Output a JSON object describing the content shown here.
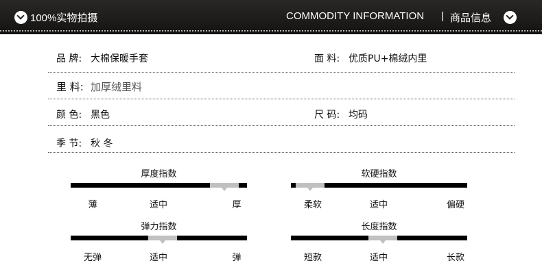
{
  "header": {
    "left_text": "100%实物拍摄",
    "right_en": "COMMODITY INFORMATION",
    "divider": "|",
    "right_cn": "商品信息"
  },
  "info": [
    {
      "label": "品  牌:",
      "value": "大棉保暖手套"
    },
    {
      "label": "面  料:",
      "value": "优质PU+棉绒内里"
    },
    {
      "label": "里  料:",
      "value": "加厚绒里料"
    },
    {
      "label": "颜  色:",
      "value": "黑色"
    },
    {
      "label": "尺  码:",
      "value": "均码"
    },
    {
      "label": "季  节:",
      "value": "秋 冬"
    }
  ],
  "gauges": [
    {
      "title": "厚度指数",
      "ticks": [
        "薄",
        "适中",
        "厚"
      ],
      "level_percent": 87
    },
    {
      "title": "软硬指数",
      "ticks": [
        "柔软",
        "适中",
        "偏硬"
      ],
      "level_percent": 11
    },
    {
      "title": "弹力指数",
      "ticks": [
        "无弹",
        "适中",
        "弹"
      ],
      "level_percent": 52
    },
    {
      "title": "长度指数",
      "ticks": [
        "短款",
        "适中",
        "长款"
      ],
      "level_percent": 52
    }
  ]
}
